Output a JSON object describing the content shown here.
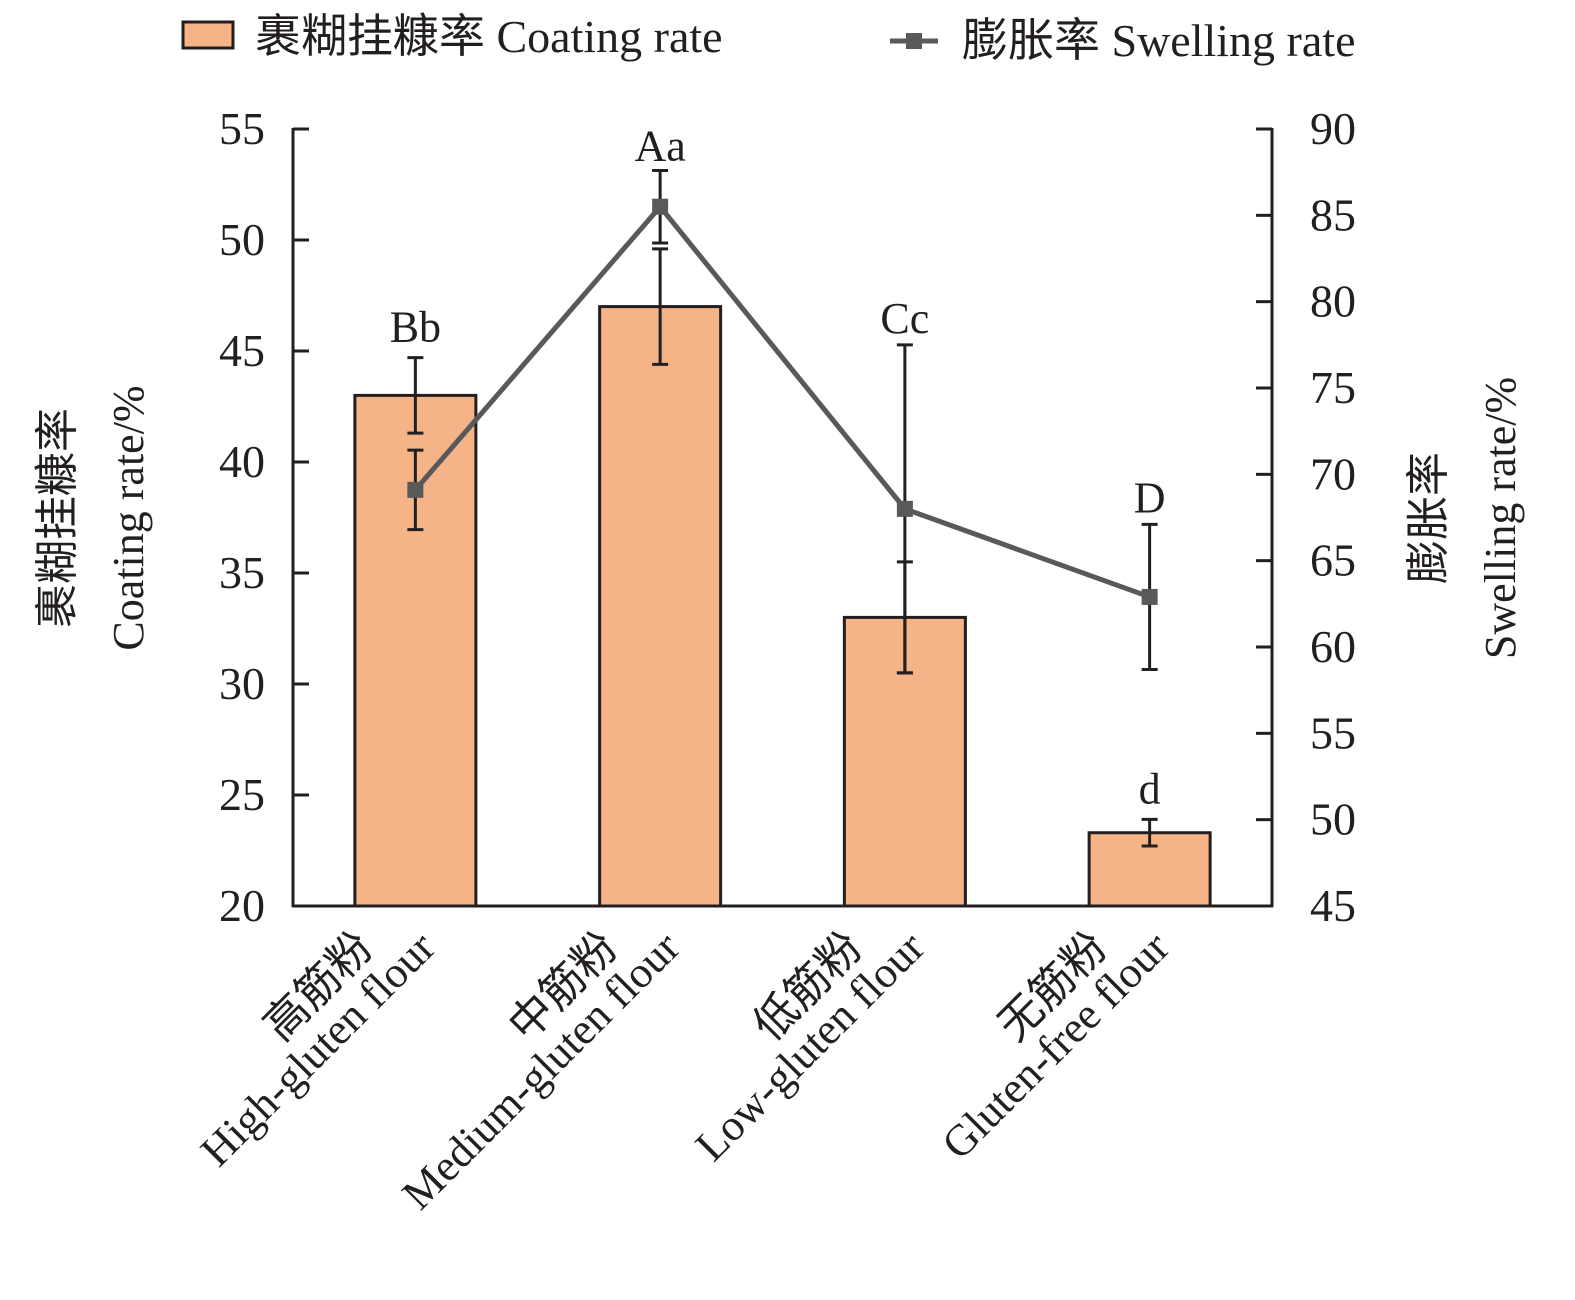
{
  "chart_data": {
    "type": "bar",
    "title": "",
    "categories": [
      {
        "zh": "高筋粉",
        "en": "High-gluten flour"
      },
      {
        "zh": "中筋粉",
        "en": "Medium-gluten flour"
      },
      {
        "zh": "低筋粉",
        "en": "Low-gluten flour"
      },
      {
        "zh": "无筋粉",
        "en": "Gluten-free flour"
      }
    ],
    "series": [
      {
        "name": "裹糊挂糠率 Coating rate",
        "type": "bar",
        "axis": "left",
        "color": "#f4b487",
        "values": [
          43.0,
          47.0,
          33.0,
          23.3
        ],
        "error": [
          1.7,
          2.6,
          2.5,
          0.6
        ],
        "significance": [
          "b",
          "a",
          "c",
          "d"
        ]
      },
      {
        "name": "膨胀率 Swelling rate",
        "type": "line",
        "axis": "right",
        "color": "#58595b",
        "marker": "square",
        "values": [
          69.1,
          85.5,
          68.0,
          62.9
        ],
        "error": [
          2.3,
          2.1,
          9.5,
          4.2
        ],
        "significance": [
          "B",
          "A",
          "C",
          "D"
        ]
      }
    ],
    "sig_labels": [
      "Bb",
      "Aa",
      "Cc",
      "D",
      "d"
    ],
    "left_axis": {
      "title_zh": "裹糊挂糠率",
      "title_en": "Coating rate/%",
      "ylim": [
        20,
        55
      ],
      "ticks": [
        "20",
        "25",
        "30",
        "35",
        "40",
        "45",
        "50",
        "55"
      ]
    },
    "right_axis": {
      "title_zh": "膨胀率",
      "title_en": "Swelling rate/%",
      "ylim": [
        45,
        90
      ],
      "ticks": [
        "45",
        "50",
        "55",
        "60",
        "65",
        "70",
        "75",
        "80",
        "85",
        "90"
      ]
    },
    "legend": {
      "placement": "top",
      "items": [
        {
          "symbol": "bar",
          "label": "裹糊挂糠率 Coating rate"
        },
        {
          "symbol": "line-square",
          "label": "膨胀率 Swelling rate"
        }
      ]
    },
    "grid": false
  }
}
